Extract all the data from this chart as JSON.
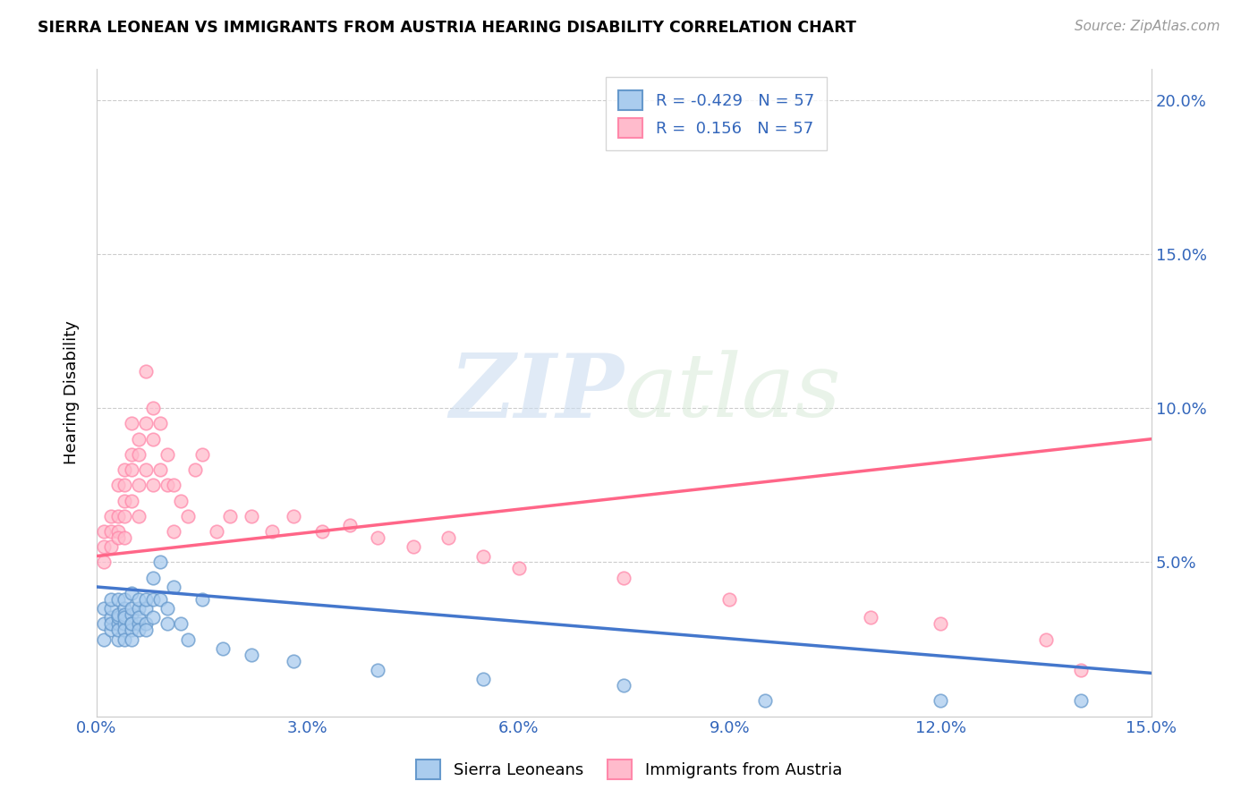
{
  "title": "SIERRA LEONEAN VS IMMIGRANTS FROM AUSTRIA HEARING DISABILITY CORRELATION CHART",
  "source": "Source: ZipAtlas.com",
  "ylabel": "Hearing Disability",
  "xlim": [
    0.0,
    0.15
  ],
  "ylim": [
    0.0,
    0.21
  ],
  "xtick_positions": [
    0.0,
    0.03,
    0.06,
    0.09,
    0.12,
    0.15
  ],
  "xtick_labels": [
    "0.0%",
    "3.0%",
    "6.0%",
    "9.0%",
    "12.0%",
    "15.0%"
  ],
  "ytick_positions": [
    0.05,
    0.1,
    0.15,
    0.2
  ],
  "ytick_labels_right": [
    "5.0%",
    "10.0%",
    "15.0%",
    "20.0%"
  ],
  "color_blue_face": "#AACCEE",
  "color_blue_edge": "#6699CC",
  "color_blue_line": "#4477CC",
  "color_pink_face": "#FFBBCC",
  "color_pink_edge": "#FF88AA",
  "color_pink_line": "#FF6688",
  "watermark_zip": "ZIP",
  "watermark_atlas": "atlas",
  "blue_scatter_x": [
    0.001,
    0.001,
    0.001,
    0.002,
    0.002,
    0.002,
    0.002,
    0.002,
    0.003,
    0.003,
    0.003,
    0.003,
    0.003,
    0.003,
    0.004,
    0.004,
    0.004,
    0.004,
    0.004,
    0.004,
    0.004,
    0.005,
    0.005,
    0.005,
    0.005,
    0.005,
    0.005,
    0.005,
    0.006,
    0.006,
    0.006,
    0.006,
    0.006,
    0.007,
    0.007,
    0.007,
    0.007,
    0.008,
    0.008,
    0.008,
    0.009,
    0.009,
    0.01,
    0.01,
    0.011,
    0.012,
    0.013,
    0.015,
    0.018,
    0.022,
    0.028,
    0.04,
    0.055,
    0.075,
    0.095,
    0.12,
    0.14
  ],
  "blue_scatter_y": [
    0.03,
    0.025,
    0.035,
    0.032,
    0.028,
    0.035,
    0.03,
    0.038,
    0.03,
    0.032,
    0.025,
    0.038,
    0.033,
    0.028,
    0.03,
    0.035,
    0.028,
    0.033,
    0.025,
    0.038,
    0.032,
    0.033,
    0.03,
    0.028,
    0.035,
    0.04,
    0.025,
    0.03,
    0.035,
    0.03,
    0.032,
    0.028,
    0.038,
    0.035,
    0.03,
    0.038,
    0.028,
    0.038,
    0.032,
    0.045,
    0.05,
    0.038,
    0.035,
    0.03,
    0.042,
    0.03,
    0.025,
    0.038,
    0.022,
    0.02,
    0.018,
    0.015,
    0.012,
    0.01,
    0.005,
    0.005,
    0.005
  ],
  "pink_scatter_x": [
    0.001,
    0.001,
    0.001,
    0.002,
    0.002,
    0.002,
    0.003,
    0.003,
    0.003,
    0.003,
    0.004,
    0.004,
    0.004,
    0.004,
    0.004,
    0.005,
    0.005,
    0.005,
    0.005,
    0.006,
    0.006,
    0.006,
    0.006,
    0.007,
    0.007,
    0.007,
    0.008,
    0.008,
    0.008,
    0.009,
    0.009,
    0.01,
    0.01,
    0.011,
    0.011,
    0.012,
    0.013,
    0.014,
    0.015,
    0.017,
    0.019,
    0.022,
    0.025,
    0.028,
    0.032,
    0.036,
    0.04,
    0.045,
    0.05,
    0.055,
    0.06,
    0.075,
    0.09,
    0.11,
    0.12,
    0.135,
    0.14
  ],
  "pink_scatter_y": [
    0.055,
    0.05,
    0.06,
    0.06,
    0.065,
    0.055,
    0.06,
    0.065,
    0.075,
    0.058,
    0.07,
    0.065,
    0.075,
    0.08,
    0.058,
    0.08,
    0.095,
    0.07,
    0.085,
    0.09,
    0.075,
    0.085,
    0.065,
    0.095,
    0.08,
    0.112,
    0.1,
    0.075,
    0.09,
    0.095,
    0.08,
    0.085,
    0.075,
    0.06,
    0.075,
    0.07,
    0.065,
    0.08,
    0.085,
    0.06,
    0.065,
    0.065,
    0.06,
    0.065,
    0.06,
    0.062,
    0.058,
    0.055,
    0.058,
    0.052,
    0.048,
    0.045,
    0.038,
    0.032,
    0.03,
    0.025,
    0.015
  ],
  "blue_trend_x": [
    0.0,
    0.15
  ],
  "blue_trend_y": [
    0.042,
    0.014
  ],
  "pink_trend_x": [
    0.0,
    0.15
  ],
  "pink_trend_y": [
    0.052,
    0.09
  ]
}
